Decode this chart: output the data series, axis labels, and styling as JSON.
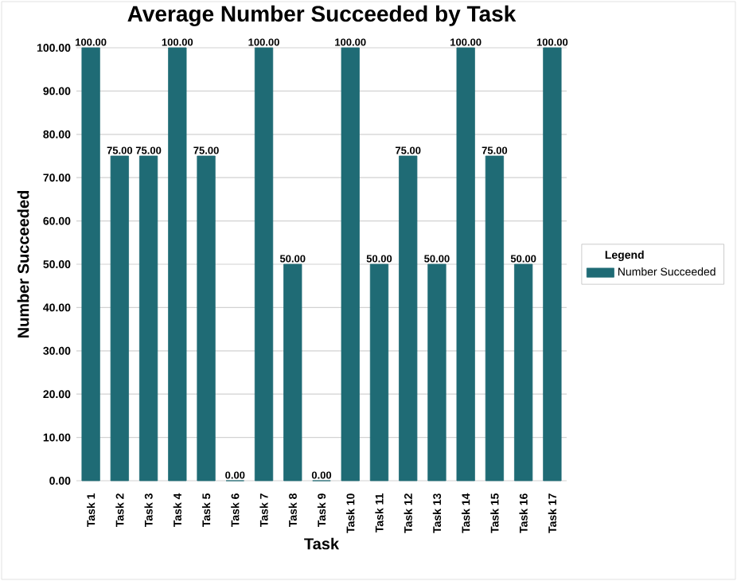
{
  "chart_data": {
    "type": "bar",
    "title": "Average Number Succeeded by Task",
    "xlabel": "Task",
    "ylabel": "Number Succeeded",
    "legend_title": "Legend",
    "categories": [
      "Task 1",
      "Task 2",
      "Task 3",
      "Task 4",
      "Task 5",
      "Task 6",
      "Task 7",
      "Task 8",
      "Task 9",
      "Task 10",
      "Task 11",
      "Task 12",
      "Task 13",
      "Task 14",
      "Task 15",
      "Task 16",
      "Task 17"
    ],
    "series": [
      {
        "name": "Number Succeeded",
        "color": "#1f6b75",
        "values": [
          100,
          75,
          75,
          100,
          75,
          0,
          100,
          50,
          0,
          100,
          50,
          75,
          50,
          100,
          75,
          50,
          100
        ]
      }
    ],
    "value_labels": [
      "100.00",
      "75.00",
      "75.00",
      "100.00",
      "75.00",
      "0.00",
      "100.00",
      "50.00",
      "0.00",
      "100.00",
      "50.00",
      "75.00",
      "50.00",
      "100.00",
      "75.00",
      "50.00",
      "100.00"
    ],
    "ylim": [
      0,
      100
    ],
    "yticks": [
      {
        "value": 0,
        "label": "0.00"
      },
      {
        "value": 10,
        "label": "10.00"
      },
      {
        "value": 20,
        "label": "20.00"
      },
      {
        "value": 30,
        "label": "30.00"
      },
      {
        "value": 40,
        "label": "40.00"
      },
      {
        "value": 50,
        "label": "50.00"
      },
      {
        "value": 60,
        "label": "60.00"
      },
      {
        "value": 70,
        "label": "70.00"
      },
      {
        "value": 80,
        "label": "80.00"
      },
      {
        "value": 90,
        "label": "90.00"
      },
      {
        "value": 100,
        "label": "100.00"
      }
    ],
    "grid": "y",
    "legend": "right"
  }
}
